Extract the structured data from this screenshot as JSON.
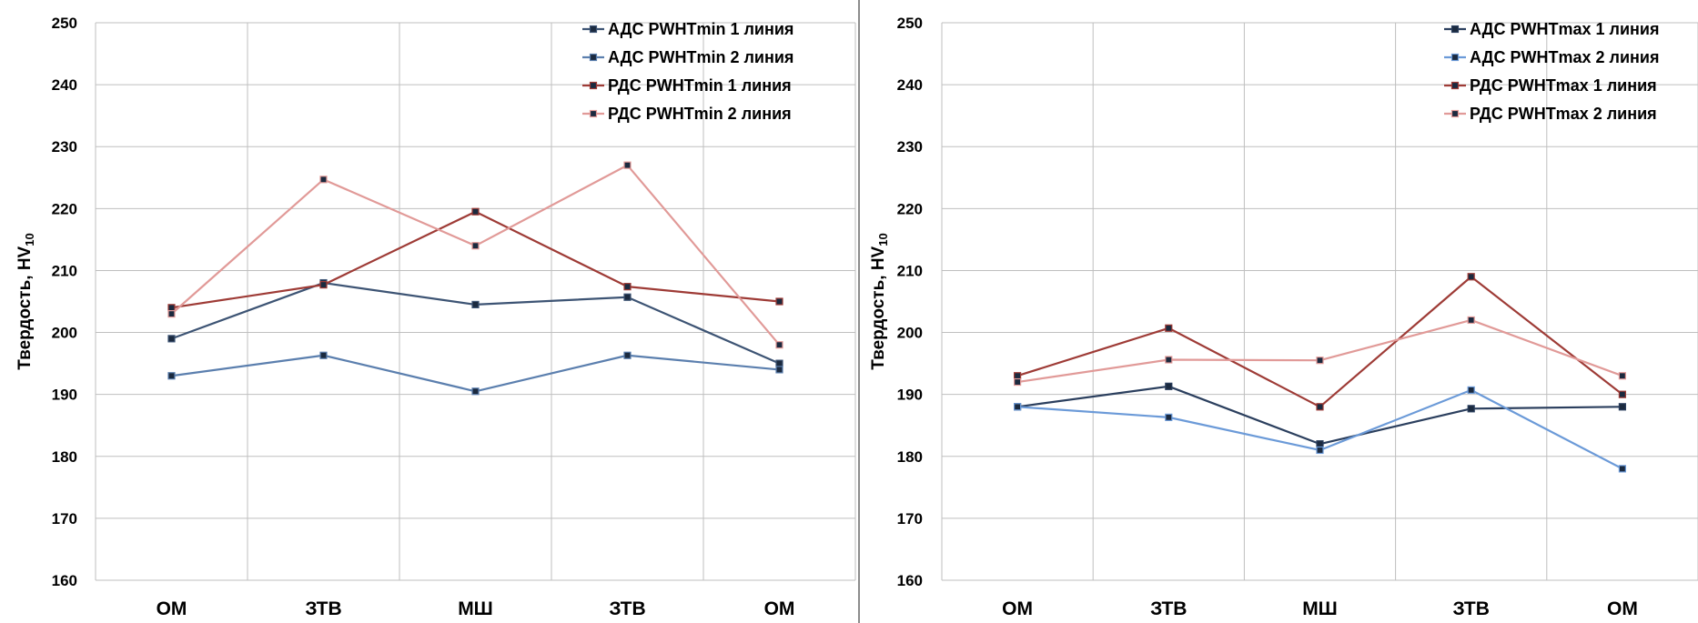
{
  "chart_data": [
    {
      "type": "line",
      "ylabel": "Твердость, HV10",
      "ylabel_main": "Твердость, HV",
      "ylabel_sub": "10",
      "categories": [
        "ОМ",
        "ЗТВ",
        "МШ",
        "ЗТВ",
        "ОМ"
      ],
      "ylim": [
        160,
        250
      ],
      "yticks": [
        160,
        170,
        180,
        190,
        200,
        210,
        220,
        230,
        240,
        250
      ],
      "grid": true,
      "legend": "top-right",
      "series": [
        {
          "name": "АДС PWHTmin 1 линия",
          "color": "#3d5474",
          "marker": "square",
          "values": [
            199,
            208,
            204.5,
            205.7,
            195
          ]
        },
        {
          "name": "АДС PWHTmin 2 линия",
          "color": "#5b7fae",
          "marker": "square",
          "values": [
            193,
            196.3,
            190.5,
            196.3,
            194
          ]
        },
        {
          "name": "РДС PWHTmin 1 линия",
          "color": "#9e3b36",
          "marker": "square",
          "values": [
            204,
            207.7,
            219.5,
            207.4,
            205
          ]
        },
        {
          "name": "РДС PWHTmin 2 линия",
          "color": "#e19a98",
          "marker": "square",
          "values": [
            203,
            224.7,
            214,
            227,
            198
          ]
        }
      ]
    },
    {
      "type": "line",
      "ylabel": "Твердость, HV10",
      "ylabel_main": "Твердость, HV",
      "ylabel_sub": "10",
      "categories": [
        "ОМ",
        "ЗТВ",
        "МШ",
        "ЗТВ",
        "ОМ"
      ],
      "ylim": [
        160,
        250
      ],
      "yticks": [
        160,
        170,
        180,
        190,
        200,
        210,
        220,
        230,
        240,
        250
      ],
      "grid": true,
      "legend": "top-right",
      "series": [
        {
          "name": "АДС PWHTmax 1 линия",
          "color": "#2b3f5e",
          "marker": "square",
          "values": [
            188,
            191.3,
            182,
            187.7,
            188
          ]
        },
        {
          "name": "АДС PWHTmax 2 линия",
          "color": "#6b9ad8",
          "marker": "square",
          "values": [
            188,
            186.3,
            181,
            190.7,
            178
          ]
        },
        {
          "name": "РДС PWHTmax 1 линия",
          "color": "#9e3b36",
          "marker": "square",
          "values": [
            193,
            200.7,
            188,
            209,
            190
          ]
        },
        {
          "name": "РДС PWHTmax 2 линия",
          "color": "#e19a98",
          "marker": "square",
          "values": [
            192,
            195.6,
            195.5,
            202,
            193
          ]
        }
      ]
    }
  ]
}
